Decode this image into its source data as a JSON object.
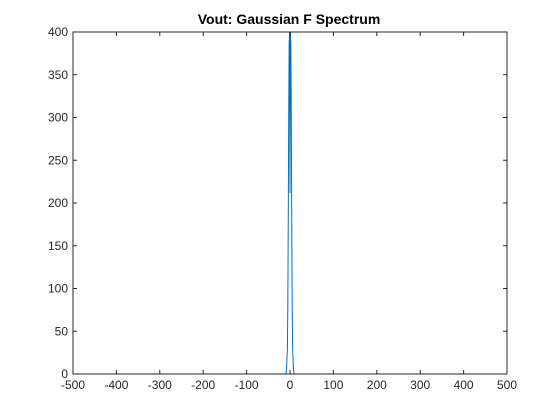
{
  "chart_data": {
    "type": "line",
    "title": "Vout: Gaussian F Spectrum",
    "xlabel": "",
    "ylabel": "",
    "xlim": [
      -500,
      500
    ],
    "ylim": [
      0,
      400
    ],
    "x_ticks": [
      -500,
      -400,
      -300,
      -200,
      -100,
      0,
      100,
      200,
      300,
      400,
      500
    ],
    "y_ticks": [
      0,
      50,
      100,
      150,
      200,
      250,
      300,
      350,
      400
    ],
    "grid": false,
    "legend": "none",
    "series": [
      {
        "color": "#0072BD",
        "x": [
          -500,
          -10,
          -8,
          -6,
          -5,
          -4,
          -3,
          -2,
          -1,
          0,
          1,
          2,
          3,
          4,
          5,
          6,
          8,
          10,
          500
        ],
        "y": [
          0,
          0,
          5,
          30,
          80,
          180,
          300,
          385,
          400,
          212,
          400,
          385,
          300,
          180,
          80,
          30,
          5,
          0,
          0
        ]
      }
    ]
  }
}
